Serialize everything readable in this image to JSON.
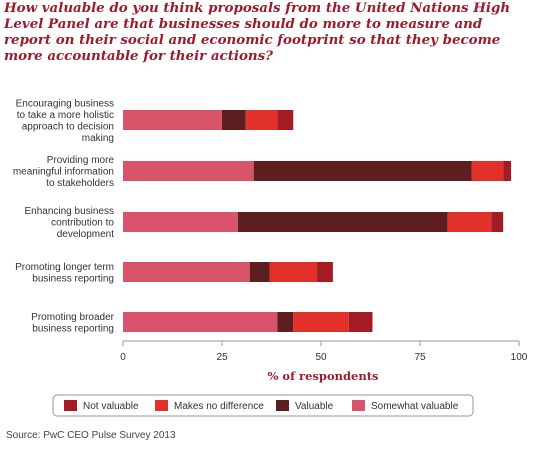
{
  "title": "How valuable do you think proposals from the United Nations High Level Panel are that businesses should do more to measure and report on their social and economic footprint so that they become more accountable for their actions?",
  "source": "Source:  PwC CEO Pulse Survey 2013",
  "chart_data": {
    "type": "bar",
    "orientation": "horizontal",
    "stacked": true,
    "categories": [
      [
        "Encouraging business",
        "to take a more holistic",
        "approach to decision",
        "making"
      ],
      [
        "Providing more",
        "meaningful information",
        "to stakeholders"
      ],
      [
        "Enhancing business",
        "contribution to",
        "development"
      ],
      [
        "Promoting longer term",
        "business reporting"
      ],
      [
        "Promoting broader",
        "business reporting"
      ]
    ],
    "series": [
      {
        "name": "Somewhat valuable",
        "color": "#d9536b",
        "values": [
          25,
          33,
          29,
          32,
          39
        ]
      },
      {
        "name": "Valuable",
        "color": "#5c1e1e",
        "values": [
          6,
          55,
          53,
          5,
          4
        ]
      },
      {
        "name": "Makes no difference",
        "color": "#e1312a",
        "values": [
          8,
          8,
          11,
          12,
          14
        ]
      },
      {
        "name": "Not valuable",
        "color": "#a31c24",
        "values": [
          4,
          2,
          3,
          4,
          6
        ]
      }
    ],
    "xlim": [
      0,
      100
    ],
    "xticks": [
      0,
      25,
      50,
      75,
      100
    ],
    "xlabel": "% of respondents",
    "grid": false,
    "legend": {
      "position": "bottom",
      "entries": [
        {
          "name": "Not valuable",
          "color": "#a31c24"
        },
        {
          "name": "Makes no difference",
          "color": "#e1312a"
        },
        {
          "name": "Valuable",
          "color": "#5c1e1e"
        },
        {
          "name": "Somewhat valuable",
          "color": "#d9536b"
        }
      ]
    }
  }
}
